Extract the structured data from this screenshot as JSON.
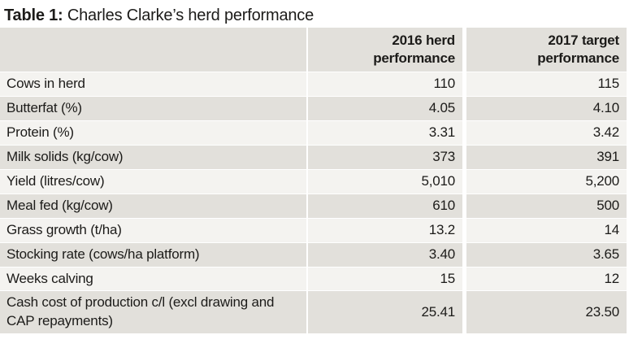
{
  "caption": {
    "prefix": "Table 1:",
    "title": "Charles Clarke’s herd performance"
  },
  "chart_data": {
    "type": "table",
    "title": "Charles Clarke’s herd performance",
    "columns": [
      "",
      "2016 herd\nperformance",
      "2017 target\nperformance"
    ],
    "rows": [
      [
        "Cows in herd",
        "110",
        "115"
      ],
      [
        "Butterfat (%)",
        "4.05",
        "4.10"
      ],
      [
        "Protein (%)",
        "3.31",
        "3.42"
      ],
      [
        "Milk solids (kg/cow)",
        "373",
        "391"
      ],
      [
        "Yield (litres/cow)",
        "5,010",
        "5,200"
      ],
      [
        "Meal fed (kg/cow)",
        "610",
        "500"
      ],
      [
        "Grass growth (t/ha)",
        "13.2",
        "14"
      ],
      [
        "Stocking rate (cows/ha platform)",
        "3.40",
        "3.65"
      ],
      [
        "Weeks calving",
        "15",
        "12"
      ],
      [
        "Cash cost of production c/l (excl drawing and CAP repayments)",
        "25.41",
        "23.50"
      ]
    ]
  },
  "colors": {
    "row_light": "#f4f3f0",
    "row_dark": "#e2e0db",
    "text": "#1c1b19",
    "background": "#ffffff"
  }
}
